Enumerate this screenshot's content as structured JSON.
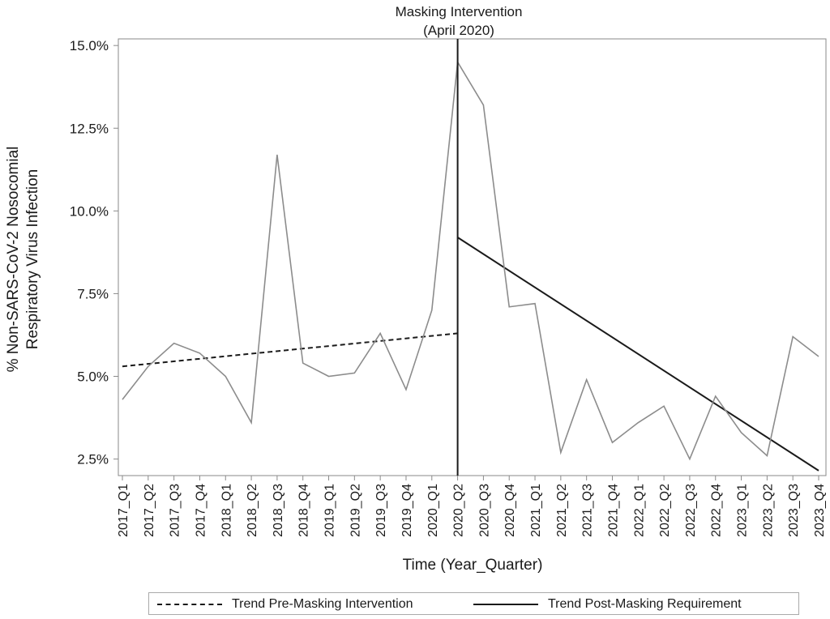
{
  "chart_data": {
    "type": "line",
    "annotation": {
      "line1": "Masking Intervention",
      "line2": "(April 2020)",
      "at_category": "2020_Q2"
    },
    "xlabel": "Time (Year_Quarter)",
    "ylabel_line1": "% Non-SARS-CoV-2 Nosocomial",
    "ylabel_line2": "Respiratory Virus Infection",
    "ylim": [
      2.0,
      15.2
    ],
    "yticks": [
      2.5,
      5.0,
      7.5,
      10.0,
      12.5,
      15.0
    ],
    "ytick_labels": [
      "2.5%",
      "5.0%",
      "7.5%",
      "10.0%",
      "12.5%",
      "15.0%"
    ],
    "categories": [
      "2017_Q1",
      "2017_Q2",
      "2017_Q3",
      "2017_Q4",
      "2018_Q1",
      "2018_Q2",
      "2018_Q3",
      "2018_Q4",
      "2019_Q1",
      "2019_Q2",
      "2019_Q3",
      "2019_Q4",
      "2020_Q1",
      "2020_Q2",
      "2020_Q3",
      "2020_Q4",
      "2021_Q1",
      "2021_Q2",
      "2021_Q3",
      "2021_Q4",
      "2022_Q1",
      "2022_Q2",
      "2022_Q3",
      "2022_Q4",
      "2023_Q1",
      "2023_Q2",
      "2023_Q3",
      "2023_Q4"
    ],
    "series": [
      {
        "name": "",
        "color": "#8c8c8c",
        "style": "solid",
        "values": [
          4.3,
          5.3,
          6.0,
          5.7,
          5.0,
          3.6,
          11.7,
          5.4,
          5.0,
          5.1,
          6.3,
          4.6,
          7.0,
          14.5,
          13.2,
          7.1,
          7.2,
          2.7,
          4.9,
          3.0,
          3.6,
          4.1,
          2.5,
          4.4,
          3.3,
          2.6,
          6.2,
          5.6
        ]
      }
    ],
    "trends": [
      {
        "name": "Trend Pre-Masking Intervention",
        "color": "#1a1a1a",
        "style": "dashed",
        "from": {
          "x": "2017_Q1",
          "y": 5.3
        },
        "to": {
          "x": "2020_Q2",
          "y": 6.3
        }
      },
      {
        "name": "Trend Post-Masking Requirement",
        "color": "#1a1a1a",
        "style": "solid",
        "from": {
          "x": "2020_Q2",
          "y": 9.2
        },
        "to": {
          "x": "2023_Q4",
          "y": 2.15
        }
      }
    ],
    "grid": false,
    "legend_position": "bottom"
  }
}
